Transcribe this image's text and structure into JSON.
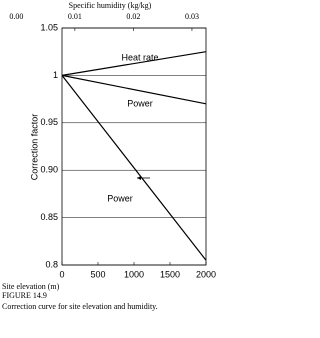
{
  "chart_data": {
    "type": "line",
    "x2_label": "Specific humidity (kg/kg)",
    "x2lim": [
      0.0078,
      0.0324
    ],
    "x2ticks": [
      {
        "value": 0,
        "label": "0.00"
      },
      {
        "value": 0.01,
        "label": "0.01"
      },
      {
        "value": 0.02,
        "label": "0.02"
      },
      {
        "value": 0.03,
        "label": "0.03"
      }
    ],
    "ylabel": "Correction factor",
    "xlabel": "Site elevation (m)",
    "figure_label": "FIGURE 14.9",
    "caption": "Correction curve for site elevation and humidity.",
    "xlim": [
      0,
      2000
    ],
    "xticks": [
      0,
      500,
      1000,
      1500,
      2000
    ],
    "ylim": [
      0.8,
      1.05
    ],
    "yticks": [
      0.8,
      0.85,
      {
        "value": 0.9,
        "label": "0.90"
      },
      0.95,
      1,
      1.05
    ],
    "grid": true,
    "series": [
      {
        "name": "Heat rate",
        "color": "#000000",
        "x": [
          0,
          2000
        ],
        "values": [
          1.0,
          1.025
        ]
      },
      {
        "name": "Power",
        "color": "#000000",
        "x": [
          0,
          2000
        ],
        "values": [
          1.0,
          0.97
        ]
      },
      {
        "name": "Power",
        "color": "#000000",
        "x": [
          0,
          2000
        ],
        "values": [
          1.0,
          0.805
        ]
      }
    ]
  }
}
